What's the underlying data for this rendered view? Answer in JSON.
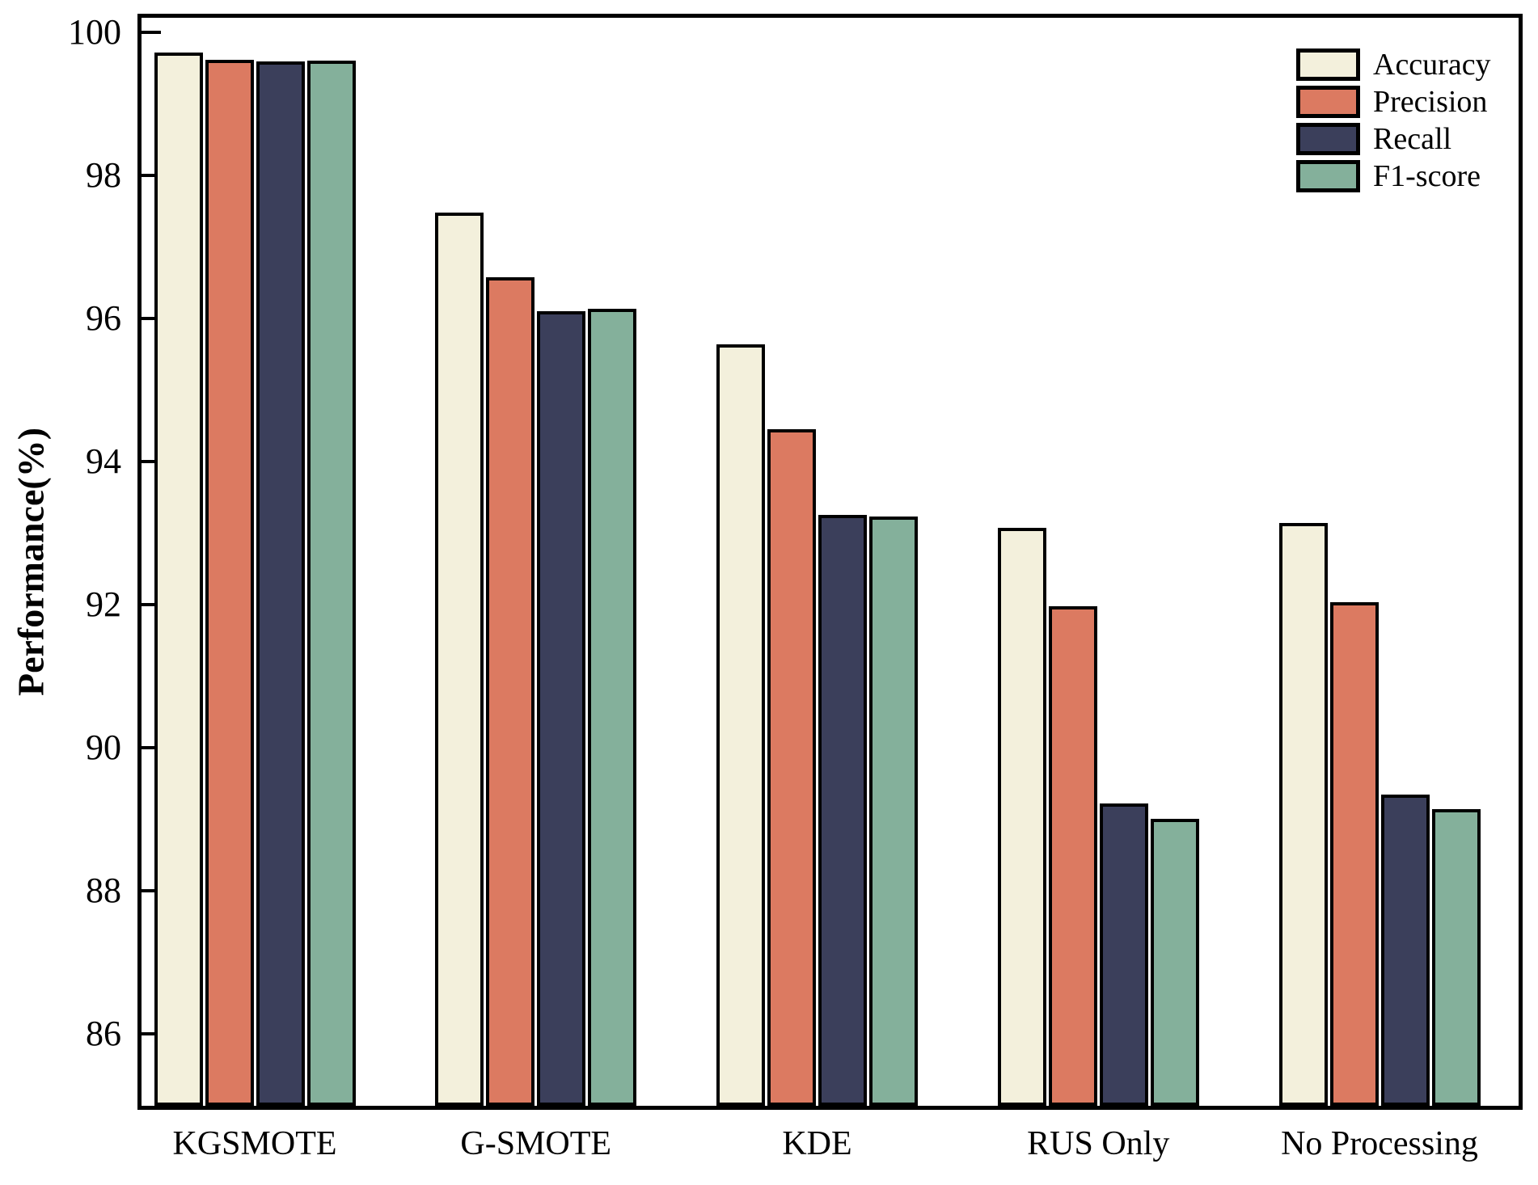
{
  "chart_data": {
    "type": "bar",
    "title": "",
    "xlabel": "",
    "ylabel": "Performance(%)",
    "ylim": [
      85,
      100.2
    ],
    "yticks": [
      86,
      88,
      90,
      92,
      94,
      96,
      98,
      100
    ],
    "grid": false,
    "legend_position": "top-right-inside",
    "background_color": "#ffffff",
    "axis_color": "#000000",
    "bar_edge_color": "#000000",
    "categories": [
      "KGSMOTE",
      "G-SMOTE",
      "KDE",
      "RUS Only",
      "No Processing"
    ],
    "series": [
      {
        "name": "Accuracy",
        "color": "#F3F0DC",
        "values": [
          99.72,
          97.48,
          95.64,
          93.07,
          93.14
        ]
      },
      {
        "name": "Precision",
        "color": "#DC7A61",
        "values": [
          99.61,
          96.57,
          94.45,
          91.98,
          92.04
        ]
      },
      {
        "name": "Recall",
        "color": "#3B3F5B",
        "values": [
          99.59,
          96.1,
          93.25,
          89.22,
          89.35
        ]
      },
      {
        "name": "F1-score",
        "color": "#84B09B",
        "values": [
          99.6,
          96.14,
          93.23,
          89.01,
          89.15
        ]
      }
    ]
  }
}
